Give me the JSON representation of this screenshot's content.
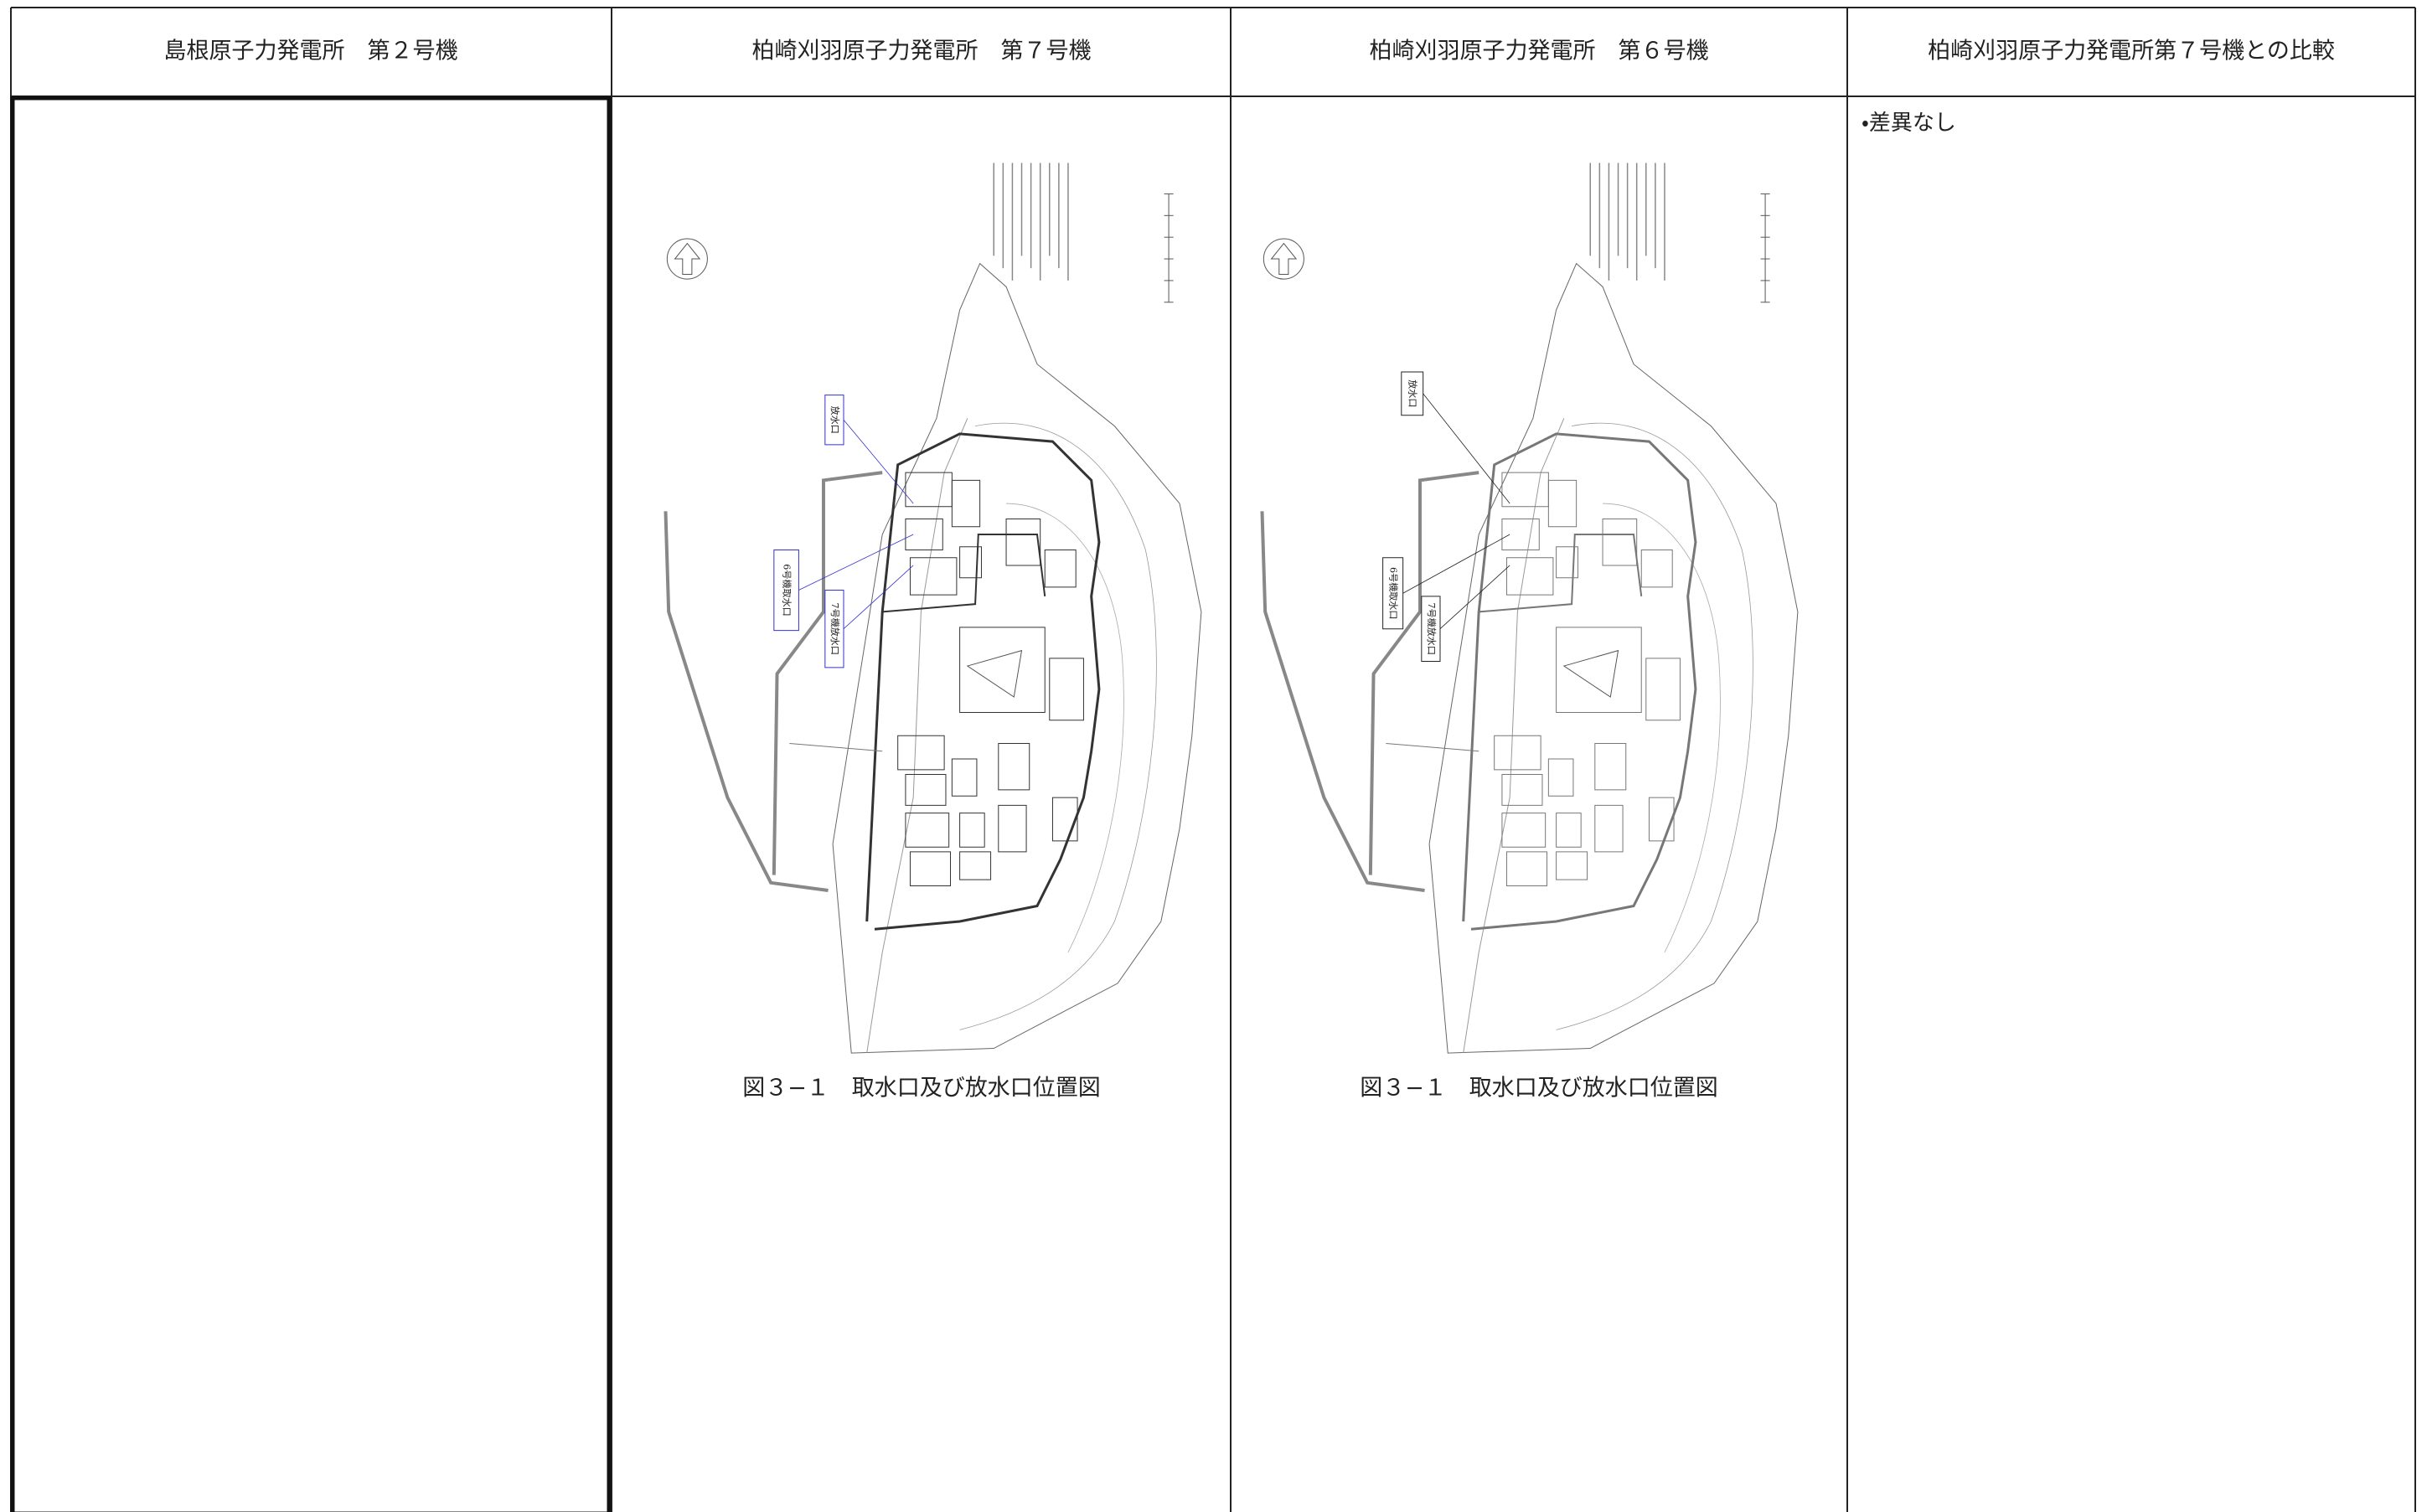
{
  "header": {
    "columns": [
      "島根原子力発電所　第２号機",
      "柏崎刈羽原子力発電所　第７号機",
      "柏崎刈羽原子力発電所　第６号機",
      "柏崎刈羽原子力発電所第７号機との比較"
    ]
  },
  "body": {
    "kk7": {
      "labels": [
        "放水口",
        "6号機取水口",
        "7号機放水口"
      ],
      "caption": "図３−１　取水口及び放水口位置図"
    },
    "kk6": {
      "labels": [
        "放水口",
        "6号機取水口",
        "7号機放水口"
      ],
      "caption": "図３−１　取水口及び放水口位置図"
    },
    "comparison": "・差異なし"
  }
}
